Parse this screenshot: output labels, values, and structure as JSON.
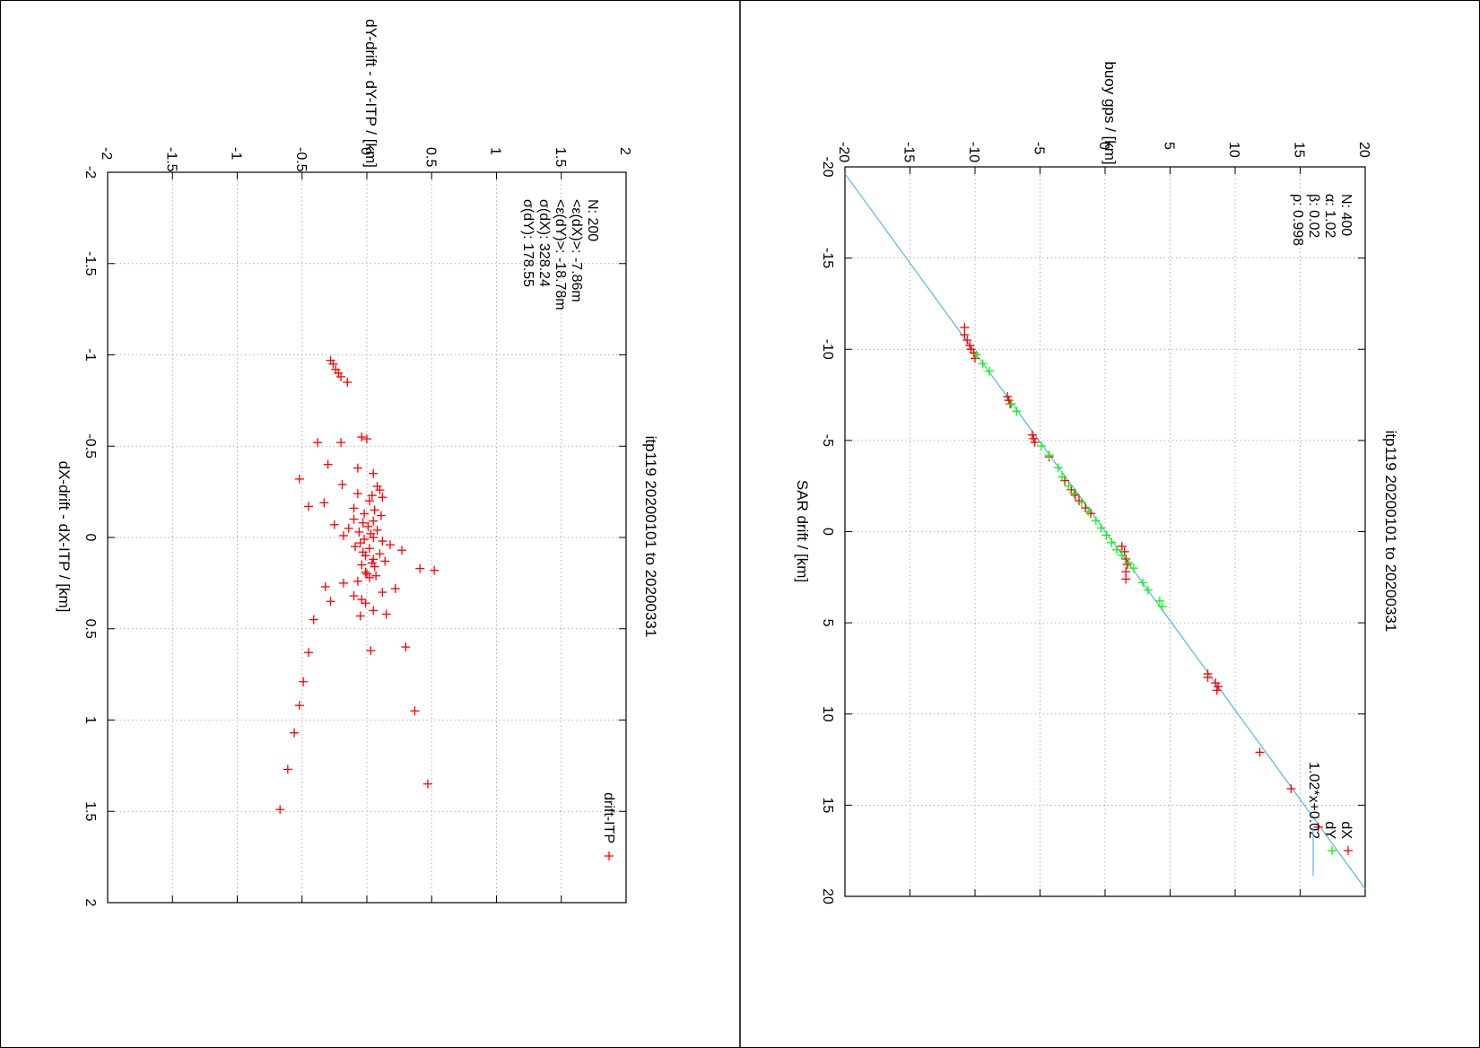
{
  "colors": {
    "dX": "#ff0000",
    "dY": "#00ff00",
    "fit": "#56b4e9",
    "residual": "#ff0000",
    "grid": "#9a9a9a"
  },
  "chart_data": [
    {
      "type": "scatter",
      "title": "itp119 20200101 to 20200331",
      "xlabel": "SAR drift / [km]",
      "ylabel": "buoy gps / [km]",
      "xlim": [
        -20,
        20
      ],
      "ylim": [
        -20,
        20
      ],
      "x_ticks": [
        "-20",
        "-15",
        "-10",
        "-5",
        "0",
        "5",
        "10",
        "15",
        "20"
      ],
      "y_ticks": [
        "-20",
        "-15",
        "-10",
        "-5",
        "0",
        "5",
        "10",
        "15",
        "20"
      ],
      "grid": true,
      "legend_position": "top-right",
      "stats": [
        "N: 400",
        "α: 1.02",
        "β: 0.02",
        "ρ: 0.998"
      ],
      "series": [
        {
          "name": "dX",
          "marker": "+",
          "points": [
            [
              -11.2,
              -10.8
            ],
            [
              -10.8,
              -10.8
            ],
            [
              -10.5,
              -10.6
            ],
            [
              -10.2,
              -10.4
            ],
            [
              -10.0,
              -10.3
            ],
            [
              -9.8,
              -10.1
            ],
            [
              -9.5,
              -10.0
            ],
            [
              -7.4,
              -7.5
            ],
            [
              -7.2,
              -7.4
            ],
            [
              -7.0,
              -7.3
            ],
            [
              -5.3,
              -5.6
            ],
            [
              -5.1,
              -5.5
            ],
            [
              -4.9,
              -5.4
            ],
            [
              -4.1,
              -4.3
            ],
            [
              -2.8,
              -3.1
            ],
            [
              -2.3,
              -2.6
            ],
            [
              -2.0,
              -2.3
            ],
            [
              -1.7,
              -2.0
            ],
            [
              -1.3,
              -1.5
            ],
            [
              -1.0,
              -1.1
            ],
            [
              1.5,
              1.6
            ],
            [
              1.1,
              1.5
            ],
            [
              0.8,
              1.3
            ],
            [
              1.8,
              1.7
            ],
            [
              2.2,
              1.6
            ],
            [
              2.6,
              1.6
            ],
            [
              7.8,
              7.9
            ],
            [
              8.0,
              7.9
            ],
            [
              8.3,
              8.5
            ],
            [
              8.5,
              8.7
            ],
            [
              8.7,
              8.6
            ],
            [
              12.1,
              11.9
            ],
            [
              14.1,
              14.3
            ],
            [
              16.2,
              16.4
            ]
          ]
        },
        {
          "name": "dY",
          "marker": "+",
          "points": [
            [
              -9.7,
              -9.9
            ],
            [
              -9.2,
              -9.4
            ],
            [
              -8.8,
              -8.9
            ],
            [
              -7.0,
              -7.2
            ],
            [
              -6.6,
              -6.8
            ],
            [
              -4.7,
              -4.9
            ],
            [
              -4.2,
              -4.3
            ],
            [
              -3.5,
              -3.6
            ],
            [
              -3.0,
              -3.3
            ],
            [
              -2.5,
              -2.8
            ],
            [
              -2.1,
              -2.4
            ],
            [
              -1.6,
              -1.8
            ],
            [
              -1.1,
              -1.3
            ],
            [
              -0.6,
              -0.7
            ],
            [
              -0.2,
              -0.3
            ],
            [
              0.2,
              0.1
            ],
            [
              0.6,
              0.5
            ],
            [
              1.0,
              0.9
            ],
            [
              1.3,
              1.3
            ],
            [
              1.7,
              1.8
            ],
            [
              2.0,
              2.2
            ],
            [
              2.8,
              2.9
            ],
            [
              3.2,
              3.3
            ],
            [
              3.8,
              4.2
            ],
            [
              4.1,
              4.4
            ]
          ]
        },
        {
          "name": "1.02*x+0.02",
          "type": "line",
          "slope": 1.02,
          "intercept": 0.02
        }
      ]
    },
    {
      "type": "scatter",
      "title": "itp119 20200101 to 20200331",
      "xlabel": "dX-drift - dX-ITP / [km]",
      "ylabel": "dY-drift - dY-ITP / [km]",
      "xlim": [
        -2,
        2
      ],
      "ylim": [
        -2,
        2
      ],
      "x_ticks": [
        "-2",
        "-1.5",
        "-1",
        "-0.5",
        "0",
        "0.5",
        "1",
        "1.5",
        "2"
      ],
      "y_ticks": [
        "-2",
        "-1.5",
        "-1",
        "-0.5",
        "0",
        "0.5",
        "1",
        "1.5",
        "2"
      ],
      "grid": true,
      "legend_position": "top-right",
      "stats": [
        "N: 200",
        "<ε(dX)>: -7.86m",
        "<ε(dY)>: -18.78m",
        "σ(dX): 328.24",
        "σ(dY): 178.55"
      ],
      "series": [
        {
          "name": "drift-ITP",
          "marker": "+",
          "points": [
            [
              -0.97,
              -0.28
            ],
            [
              -0.95,
              -0.26
            ],
            [
              -0.92,
              -0.24
            ],
            [
              -0.9,
              -0.22
            ],
            [
              -0.88,
              -0.2
            ],
            [
              -0.85,
              -0.15
            ],
            [
              -0.55,
              -0.04
            ],
            [
              -0.54,
              0.0
            ],
            [
              -0.52,
              -0.2
            ],
            [
              -0.52,
              -0.38
            ],
            [
              -0.4,
              -0.3
            ],
            [
              -0.38,
              -0.07
            ],
            [
              -0.35,
              0.05
            ],
            [
              -0.32,
              -0.52
            ],
            [
              -0.29,
              -0.19
            ],
            [
              -0.28,
              0.08
            ],
            [
              -0.26,
              0.1
            ],
            [
              -0.24,
              -0.07
            ],
            [
              -0.23,
              0.04
            ],
            [
              -0.22,
              0.12
            ],
            [
              -0.2,
              0.02
            ],
            [
              -0.19,
              -0.33
            ],
            [
              -0.17,
              -0.45
            ],
            [
              -0.16,
              -0.1
            ],
            [
              -0.15,
              0.06
            ],
            [
              -0.13,
              -0.02
            ],
            [
              -0.12,
              0.11
            ],
            [
              -0.1,
              -0.1
            ],
            [
              -0.09,
              0.05
            ],
            [
              -0.08,
              -0.03
            ],
            [
              -0.07,
              -0.25
            ],
            [
              -0.06,
              0.01
            ],
            [
              -0.05,
              -0.14
            ],
            [
              -0.04,
              0.08
            ],
            [
              -0.03,
              -0.06
            ],
            [
              -0.02,
              0.03
            ],
            [
              -0.01,
              -0.18
            ],
            [
              0.0,
              0.05
            ],
            [
              0.01,
              -0.02
            ],
            [
              0.02,
              0.12
            ],
            [
              0.03,
              -0.05
            ],
            [
              0.04,
              0.18
            ],
            [
              0.05,
              -0.09
            ],
            [
              0.06,
              0.02
            ],
            [
              0.07,
              0.27
            ],
            [
              0.08,
              -0.03
            ],
            [
              0.09,
              0.1
            ],
            [
              0.1,
              -0.01
            ],
            [
              0.12,
              0.05
            ],
            [
              0.13,
              0.14
            ],
            [
              0.14,
              0.04
            ],
            [
              0.15,
              -0.04
            ],
            [
              0.16,
              0.06
            ],
            [
              0.17,
              0.41
            ],
            [
              0.18,
              0.52
            ],
            [
              0.19,
              -0.01
            ],
            [
              0.2,
              0.0
            ],
            [
              0.21,
              0.07
            ],
            [
              0.22,
              0.02
            ],
            [
              0.24,
              -0.07
            ],
            [
              0.25,
              -0.18
            ],
            [
              0.27,
              -0.32
            ],
            [
              0.28,
              0.22
            ],
            [
              0.3,
              0.12
            ],
            [
              0.32,
              -0.1
            ],
            [
              0.34,
              -0.04
            ],
            [
              0.35,
              -0.28
            ],
            [
              0.36,
              -0.01
            ],
            [
              0.4,
              0.05
            ],
            [
              0.42,
              0.15
            ],
            [
              0.43,
              -0.05
            ],
            [
              0.45,
              -0.41
            ],
            [
              0.63,
              -0.45
            ],
            [
              0.62,
              0.03
            ],
            [
              0.6,
              0.3
            ],
            [
              0.79,
              -0.49
            ],
            [
              0.92,
              -0.52
            ],
            [
              0.95,
              0.37
            ],
            [
              1.07,
              -0.56
            ],
            [
              1.27,
              -0.61
            ],
            [
              1.35,
              0.47
            ],
            [
              1.49,
              -0.67
            ]
          ]
        }
      ]
    }
  ]
}
